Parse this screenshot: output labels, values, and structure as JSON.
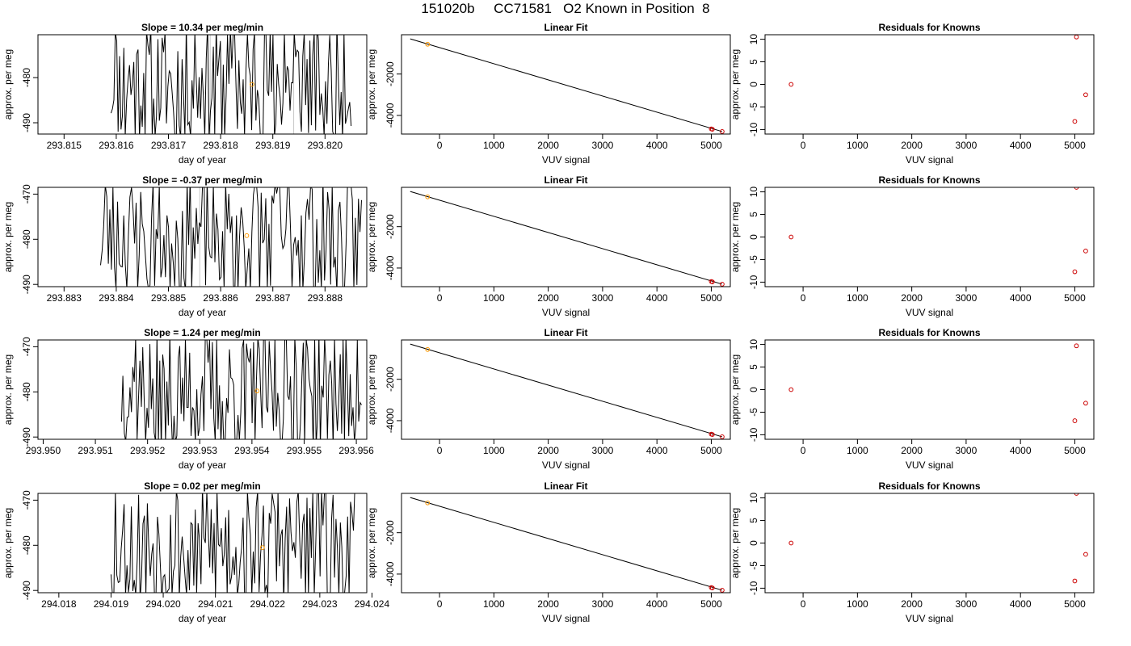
{
  "figure": {
    "title": "151020b     CC71581   O2 Known in Position  8"
  },
  "chart_data": [
    {
      "type": "line",
      "title": "Slope =  10.34  per meg/min",
      "xlabel": "day of year",
      "ylabel": "approx. per meg",
      "xlim": [
        293.8145,
        293.8208
      ],
      "ylim": [
        -492.5,
        -470.5
      ],
      "xticks": [
        293.815,
        293.816,
        293.817,
        293.818,
        293.819,
        293.82
      ],
      "xtick_labels": [
        "293.815",
        "293.816",
        "293.817",
        "293.818",
        "293.819",
        "293.820"
      ],
      "yticks": [
        -480,
        -490
      ],
      "ytick_labels": [
        "-480",
        "-490"
      ],
      "series": [
        {
          "seed": 11,
          "x_start": 293.8159,
          "x_end": 293.8205,
          "min": -493,
          "max": -470,
          "mean": -481
        }
      ],
      "vlines": [
        293.8178,
        293.8194
      ],
      "points": [
        {
          "x": 293.8186,
          "y": -481.5
        }
      ]
    },
    {
      "type": "line",
      "title": "Linear Fit",
      "xlabel": "VUV signal",
      "ylabel": "approx. per meg",
      "xlim": [
        -700,
        5350
      ],
      "ylim": [
        -4900,
        -100
      ],
      "xticks": [
        0,
        1000,
        2000,
        3000,
        4000,
        5000
      ],
      "xtick_labels": [
        "0",
        "1000",
        "2000",
        "3000",
        "4000",
        "5000"
      ],
      "yticks": [
        -2000,
        -4000
      ],
      "ytick_labels": [
        "-2000",
        "-4000"
      ],
      "fit_line": {
        "x": [
          -540,
          5200
        ],
        "y": [
          -300,
          -4780
        ]
      },
      "points_known": [
        {
          "x": 5000,
          "y": -4650
        },
        {
          "x": 5020,
          "y": -4670
        },
        {
          "x": 5200,
          "y": -4780
        }
      ],
      "points_sample": [
        {
          "x": -220,
          "y": -560
        }
      ]
    },
    {
      "type": "scatter",
      "title": "Residuals for Knowns",
      "xlabel": "VUV signal",
      "ylabel": "approx. per meg",
      "xlim": [
        -700,
        5350
      ],
      "ylim": [
        -11,
        11
      ],
      "xticks": [
        0,
        1000,
        2000,
        3000,
        4000,
        5000
      ],
      "xtick_labels": [
        "0",
        "1000",
        "2000",
        "3000",
        "4000",
        "5000"
      ],
      "yticks": [
        10,
        5,
        0,
        -5,
        -10
      ],
      "ytick_labels": [
        "10",
        "5",
        "0",
        "-5",
        "-10"
      ],
      "points": [
        {
          "x": -220,
          "y": 0
        },
        {
          "x": 5030,
          "y": 10.5
        },
        {
          "x": 5200,
          "y": -2.3
        },
        {
          "x": 5000,
          "y": -8.2
        }
      ]
    },
    {
      "type": "line",
      "title": "Slope =  -0.37  per meg/min",
      "xlabel": "day of year",
      "ylabel": "approx. per meg",
      "xlim": [
        293.8825,
        293.8888
      ],
      "ylim": [
        -490.5,
        -468.5
      ],
      "xticks": [
        293.883,
        293.884,
        293.885,
        293.886,
        293.887,
        293.888
      ],
      "xtick_labels": [
        "293.883",
        "293.884",
        "293.885",
        "293.886",
        "293.887",
        "293.888"
      ],
      "yticks": [
        -470,
        -480,
        -490
      ],
      "ytick_labels": [
        "-470",
        "-480",
        "-490"
      ],
      "series": [
        {
          "seed": 23,
          "x_start": 293.8837,
          "x_end": 293.8887,
          "min": -491,
          "max": -468,
          "mean": -479
        }
      ],
      "vlines": [
        293.8856
      ],
      "points": [
        {
          "x": 293.8865,
          "y": -479.2
        }
      ]
    },
    {
      "type": "line",
      "title": "Linear Fit",
      "xlabel": "VUV signal",
      "ylabel": "approx. per meg",
      "xlim": [
        -700,
        5350
      ],
      "ylim": [
        -4900,
        -100
      ],
      "xticks": [
        0,
        1000,
        2000,
        3000,
        4000,
        5000
      ],
      "xtick_labels": [
        "0",
        "1000",
        "2000",
        "3000",
        "4000",
        "5000"
      ],
      "yticks": [
        -2000,
        -4000
      ],
      "ytick_labels": [
        "-2000",
        "-4000"
      ],
      "fit_line": {
        "x": [
          -540,
          5200
        ],
        "y": [
          -300,
          -4780
        ]
      },
      "points_known": [
        {
          "x": 5000,
          "y": -4650
        },
        {
          "x": 5020,
          "y": -4670
        },
        {
          "x": 5200,
          "y": -4780
        }
      ],
      "points_sample": [
        {
          "x": -220,
          "y": -560
        }
      ]
    },
    {
      "type": "scatter",
      "title": "Residuals for Knowns",
      "xlabel": "VUV signal",
      "ylabel": "approx. per meg",
      "xlim": [
        -700,
        5350
      ],
      "ylim": [
        -11,
        11
      ],
      "xticks": [
        0,
        1000,
        2000,
        3000,
        4000,
        5000
      ],
      "xtick_labels": [
        "0",
        "1000",
        "2000",
        "3000",
        "4000",
        "5000"
      ],
      "yticks": [
        10,
        5,
        0,
        -5,
        -10
      ],
      "ytick_labels": [
        "10",
        "5",
        "0",
        "-5",
        "-10"
      ],
      "points": [
        {
          "x": -220,
          "y": 0
        },
        {
          "x": 5030,
          "y": 11
        },
        {
          "x": 5200,
          "y": -3.1
        },
        {
          "x": 5000,
          "y": -7.7
        }
      ]
    },
    {
      "type": "line",
      "title": "Slope =  1.24  per meg/min",
      "xlabel": "day of year",
      "ylabel": "approx. per meg",
      "xlim": [
        293.9499,
        293.9562
      ],
      "ylim": [
        -490.5,
        -468.5
      ],
      "xticks": [
        293.95,
        293.951,
        293.952,
        293.953,
        293.954,
        293.955,
        293.956
      ],
      "xtick_labels": [
        "293.950",
        "293.951",
        "293.952",
        "293.953",
        "293.954",
        "293.955",
        "293.956"
      ],
      "yticks": [
        -470,
        -480,
        -490
      ],
      "ytick_labels": [
        "-470",
        "-480",
        "-490"
      ],
      "series": [
        {
          "seed": 37,
          "x_start": 293.9515,
          "x_end": 293.9561,
          "min": -491,
          "max": -468,
          "mean": -480
        }
      ],
      "vlines": [
        293.955
      ],
      "points": [
        {
          "x": 293.9541,
          "y": -479.8
        }
      ]
    },
    {
      "type": "line",
      "title": "Linear Fit",
      "xlabel": "VUV signal",
      "ylabel": "approx. per meg",
      "xlim": [
        -700,
        5350
      ],
      "ylim": [
        -4900,
        -100
      ],
      "xticks": [
        0,
        1000,
        2000,
        3000,
        4000,
        5000
      ],
      "xtick_labels": [
        "0",
        "1000",
        "2000",
        "3000",
        "4000",
        "5000"
      ],
      "yticks": [
        -2000,
        -4000
      ],
      "ytick_labels": [
        "-2000",
        "-4000"
      ],
      "fit_line": {
        "x": [
          -540,
          5200
        ],
        "y": [
          -300,
          -4780
        ]
      },
      "points_known": [
        {
          "x": 5000,
          "y": -4650
        },
        {
          "x": 5020,
          "y": -4670
        },
        {
          "x": 5200,
          "y": -4780
        }
      ],
      "points_sample": [
        {
          "x": -220,
          "y": -560
        }
      ]
    },
    {
      "type": "scatter",
      "title": "Residuals for Knowns",
      "xlabel": "VUV signal",
      "ylabel": "approx. per meg",
      "xlim": [
        -700,
        5350
      ],
      "ylim": [
        -11,
        11
      ],
      "xticks": [
        0,
        1000,
        2000,
        3000,
        4000,
        5000
      ],
      "xtick_labels": [
        "0",
        "1000",
        "2000",
        "3000",
        "4000",
        "5000"
      ],
      "yticks": [
        10,
        5,
        0,
        -5,
        -10
      ],
      "ytick_labels": [
        "10",
        "5",
        "0",
        "-5",
        "-10"
      ],
      "points": [
        {
          "x": -220,
          "y": 0
        },
        {
          "x": 5030,
          "y": 9.7
        },
        {
          "x": 5200,
          "y": -3
        },
        {
          "x": 5000,
          "y": -6.9
        }
      ]
    },
    {
      "type": "line",
      "title": "Slope =  0.02  per meg/min",
      "xlabel": "day of year",
      "ylabel": "approx. per meg",
      "xlim": [
        294.0176,
        294.0239
      ],
      "ylim": [
        -490.5,
        -468.5
      ],
      "xticks": [
        294.018,
        294.019,
        294.02,
        294.021,
        294.022,
        294.023,
        294.024
      ],
      "xtick_labels": [
        "294.018",
        "294.019",
        "294.020",
        "294.021",
        "294.022",
        "294.023",
        "294.024"
      ],
      "yticks": [
        -470,
        -480,
        -490
      ],
      "ytick_labels": [
        "-470",
        "-480",
        "-490"
      ],
      "series": [
        {
          "seed": 53,
          "x_start": 294.019,
          "x_end": 294.0237,
          "min": -491,
          "max": -468,
          "mean": -480
        }
      ],
      "vlines": [],
      "points": [
        {
          "x": 294.0219,
          "y": -480.5
        }
      ]
    },
    {
      "type": "line",
      "title": "Linear Fit",
      "xlabel": "VUV signal",
      "ylabel": "approx. per meg",
      "xlim": [
        -700,
        5350
      ],
      "ylim": [
        -4900,
        -100
      ],
      "xticks": [
        0,
        1000,
        2000,
        3000,
        4000,
        5000
      ],
      "xtick_labels": [
        "0",
        "1000",
        "2000",
        "3000",
        "4000",
        "5000"
      ],
      "yticks": [
        -2000,
        -4000
      ],
      "ytick_labels": [
        "-2000",
        "-4000"
      ],
      "fit_line": {
        "x": [
          -540,
          5200
        ],
        "y": [
          -300,
          -4780
        ]
      },
      "points_known": [
        {
          "x": 5000,
          "y": -4650
        },
        {
          "x": 5020,
          "y": -4670
        },
        {
          "x": 5200,
          "y": -4780
        }
      ],
      "points_sample": [
        {
          "x": -220,
          "y": -560
        }
      ]
    },
    {
      "type": "scatter",
      "title": "Residuals for Knowns",
      "xlabel": "VUV signal",
      "ylabel": "approx. per meg",
      "xlim": [
        -700,
        5350
      ],
      "ylim": [
        -11,
        11
      ],
      "xticks": [
        0,
        1000,
        2000,
        3000,
        4000,
        5000
      ],
      "xtick_labels": [
        "0",
        "1000",
        "2000",
        "3000",
        "4000",
        "5000"
      ],
      "yticks": [
        10,
        5,
        0,
        -5,
        -10
      ],
      "ytick_labels": [
        "10",
        "5",
        "0",
        "-5",
        "-10"
      ],
      "points": [
        {
          "x": -220,
          "y": 0
        },
        {
          "x": 5030,
          "y": 11
        },
        {
          "x": 5200,
          "y": -2.5
        },
        {
          "x": 5000,
          "y": -8.4
        }
      ]
    }
  ],
  "colors": {
    "axis": "#000000",
    "trace": "#000000",
    "vline": "#c8c8c8",
    "sample_point": "#ff9900",
    "known_point": "#cc0000"
  }
}
